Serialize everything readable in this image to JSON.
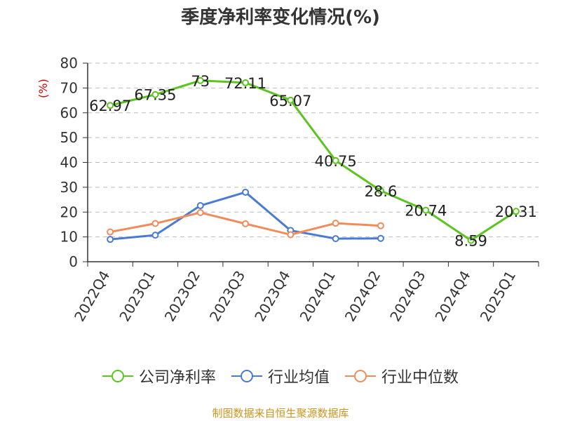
{
  "title": "季度净利率变化情况(%)",
  "unit_label": "(%)",
  "source": "制图数据来自恒生聚源数据库",
  "chart_data": {
    "type": "line",
    "title": "季度净利率变化情况(%)",
    "ylabel": "(%)",
    "ylim": [
      0,
      80
    ],
    "yticks": [
      0,
      10,
      20,
      30,
      40,
      50,
      60,
      70,
      80
    ],
    "grid": true,
    "legend_position": "bottom",
    "categories": [
      "2022Q4",
      "2023Q1",
      "2023Q2",
      "2023Q3",
      "2023Q4",
      "2024Q1",
      "2024Q2",
      "2024Q3",
      "2024Q4",
      "2025Q1"
    ],
    "series": [
      {
        "name": "公司净利率",
        "color": "#5cc41e",
        "values": [
          62.97,
          67.35,
          73,
          72.11,
          65.07,
          40.75,
          28.6,
          20.74,
          8.59,
          20.31
        ],
        "labels": [
          "62.97",
          "67.35",
          "73",
          "72.11",
          "65.07",
          "40.75",
          "28.6",
          "20.74",
          "8.59",
          "20.31"
        ],
        "segments": [
          [
            0,
            8
          ],
          [
            8,
            9
          ]
        ]
      },
      {
        "name": "行业均值",
        "color": "#4a7bd4",
        "values": [
          9,
          10.7,
          22.6,
          28,
          12.6,
          9.3,
          9.4,
          null,
          null,
          null
        ]
      },
      {
        "name": "行业中位数",
        "color": "#f28b5a",
        "values": [
          12,
          15.4,
          19.8,
          15.3,
          10.9,
          15.5,
          14.5,
          null,
          null,
          null
        ]
      }
    ]
  }
}
